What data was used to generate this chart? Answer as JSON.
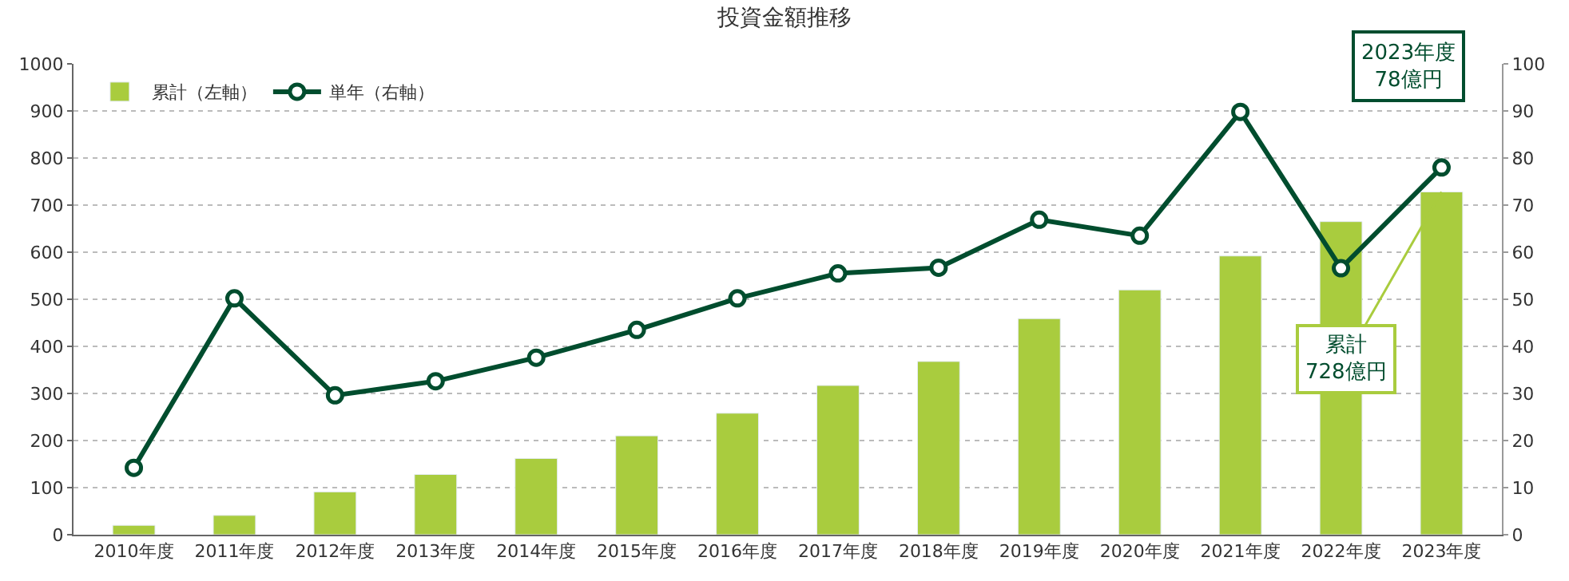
{
  "chart_data": {
    "type": "bar",
    "title": "投資金額推移",
    "categories": [
      "2010年度",
      "2011年度",
      "2012年度",
      "2013年度",
      "2014年度",
      "2015年度",
      "2016年度",
      "2017年度",
      "2018年度",
      "2019年度",
      "2020年度",
      "2021年度",
      "2022年度",
      "2023年度"
    ],
    "series": [
      {
        "name": "累計（左軸）",
        "color": "#a9cc3e",
        "values": [
          20,
          41,
          91,
          128,
          162,
          210,
          258,
          317,
          368,
          459,
          520,
          592,
          665,
          728
        ]
      },
      {
        "name": "単年（右軸）",
        "type": "line",
        "axis": "y2",
        "color": "#004d2e",
        "marker": "circle",
        "values": [
          14.2,
          50.2,
          29.6,
          32.6,
          37.6,
          43.5,
          50.2,
          55.5,
          56.7,
          66.9,
          63.5,
          89.8,
          56.6,
          78
        ]
      }
    ],
    "ylim": [
      0,
      1000
    ],
    "yticks": [
      0,
      100,
      200,
      300,
      400,
      500,
      600,
      700,
      800,
      900,
      1000
    ],
    "y2lim": [
      0,
      100
    ],
    "y2ticks": [
      0,
      10,
      20,
      30,
      40,
      50,
      60,
      70,
      80,
      90,
      100
    ],
    "grid": "y",
    "legend": "top left",
    "annotations": [
      {
        "text": "累計\n728億円",
        "x": "2023年度",
        "y": 728
      },
      "2023年度\n78億円"
    ]
  }
}
